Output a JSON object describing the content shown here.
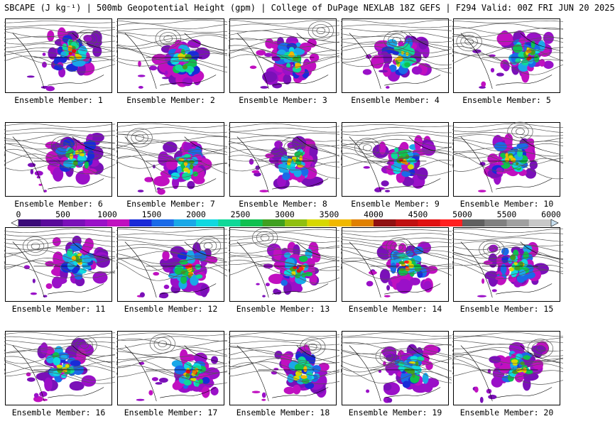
{
  "header": {
    "title": "SBCAPE (J kg⁻¹) | 500mb Geopotential Height (gpm) | College of DuPage NEXLAB 18Z GEFS | F294 Valid: 00Z FRI JUN 20 2025"
  },
  "colorbar": {
    "ticks": [
      "0",
      "500",
      "1000",
      "1500",
      "2000",
      "2500",
      "3000",
      "3500",
      "4000",
      "4500",
      "5000",
      "5500",
      "6000"
    ],
    "colors": [
      "#3a0a78",
      "#5a0a9a",
      "#7a10b8",
      "#9a10c8",
      "#c010c0",
      "#1a2ad8",
      "#1a6ae8",
      "#1aa8e8",
      "#10d8e0",
      "#10d898",
      "#10c050",
      "#40a020",
      "#90c010",
      "#d8d800",
      "#f0b800",
      "#e08000",
      "#901010",
      "#c01010",
      "#e01010",
      "#ff2020",
      "#606060",
      "#808080",
      "#a0a0a0",
      "#c8c8c8"
    ]
  },
  "panels": [
    {
      "label": "Ensemble Member: 1"
    },
    {
      "label": "Ensemble Member: 2"
    },
    {
      "label": "Ensemble Member: 3"
    },
    {
      "label": "Ensemble Member: 4"
    },
    {
      "label": "Ensemble Member: 5"
    },
    {
      "label": "Ensemble Member: 6"
    },
    {
      "label": "Ensemble Member: 7"
    },
    {
      "label": "Ensemble Member: 8"
    },
    {
      "label": "Ensemble Member: 9"
    },
    {
      "label": "Ensemble Member: 10"
    },
    {
      "label": "Ensemble Member: 11"
    },
    {
      "label": "Ensemble Member: 12"
    },
    {
      "label": "Ensemble Member: 13"
    },
    {
      "label": "Ensemble Member: 14"
    },
    {
      "label": "Ensemble Member: 15"
    },
    {
      "label": "Ensemble Member: 16"
    },
    {
      "label": "Ensemble Member: 17"
    },
    {
      "label": "Ensemble Member: 18"
    },
    {
      "label": "Ensemble Member: 19"
    },
    {
      "label": "Ensemble Member: 20"
    }
  ]
}
